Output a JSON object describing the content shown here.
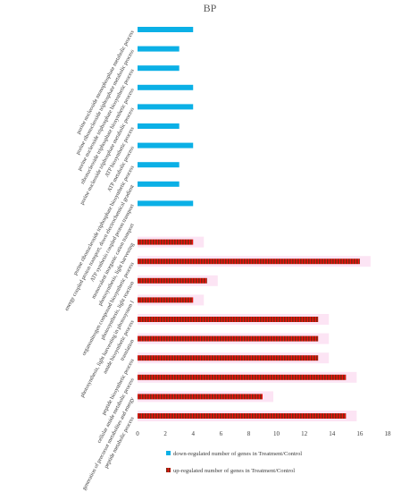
{
  "chart_data": {
    "type": "bar",
    "orientation": "horizontal",
    "title": "BP",
    "xlim": [
      0,
      18
    ],
    "xticks": [
      0,
      2,
      4,
      6,
      8,
      10,
      12,
      14,
      16,
      18
    ],
    "grid": false,
    "legend_position": "bottom",
    "categories": [
      "peptide metabolic process",
      "generation of precursor metabolites and energy",
      "cellular amide metabolic process",
      "peptide biosynthetic process",
      "translation",
      "amide biosynthetic process",
      "photosynthesis, light harvesting in photosystem I",
      "photosynthesis, light reaction",
      "organonitrogen compound biosynthetic process",
      "photosynthesis, light harvesting",
      "monovalent inorganic cation transport",
      "ATP synthesis coupled proton transport",
      "energy coupled proton transport, down electrochemical gradient",
      "purine ribonucleoside triphosphate biosynthetic process",
      "ATP metabolic process",
      "ATP biosynthetic process",
      "purine nucleoside triphosphate metabolic process",
      "ribonucleoside triphosphate biosynthetic process",
      "purine nucleoside triphosphate biosynthetic process",
      "purine ribonucleoside triphosphate metabolic process",
      "purine nucleoside monophosphate metabolic process"
    ],
    "series": [
      {
        "name": "down-regulated number of genes in Treatment/Control",
        "color": "#0BB0E6",
        "values": [
          0,
          0,
          0,
          0,
          0,
          0,
          0,
          0,
          0,
          0,
          0,
          4,
          3,
          3,
          4,
          3,
          4,
          4,
          3,
          3,
          4
        ]
      },
      {
        "name": "up-regulated number of genes in Treatment/Control",
        "color": "#F20F0F",
        "values": [
          15,
          9,
          15,
          13,
          13,
          13,
          4,
          5,
          16,
          4,
          0,
          0,
          0,
          0,
          0,
          0,
          0,
          0,
          0,
          0,
          0
        ]
      }
    ],
    "bar_style": {
      "hatched_color": "#7A2A10",
      "halo_color": "#FCE4F4"
    }
  }
}
